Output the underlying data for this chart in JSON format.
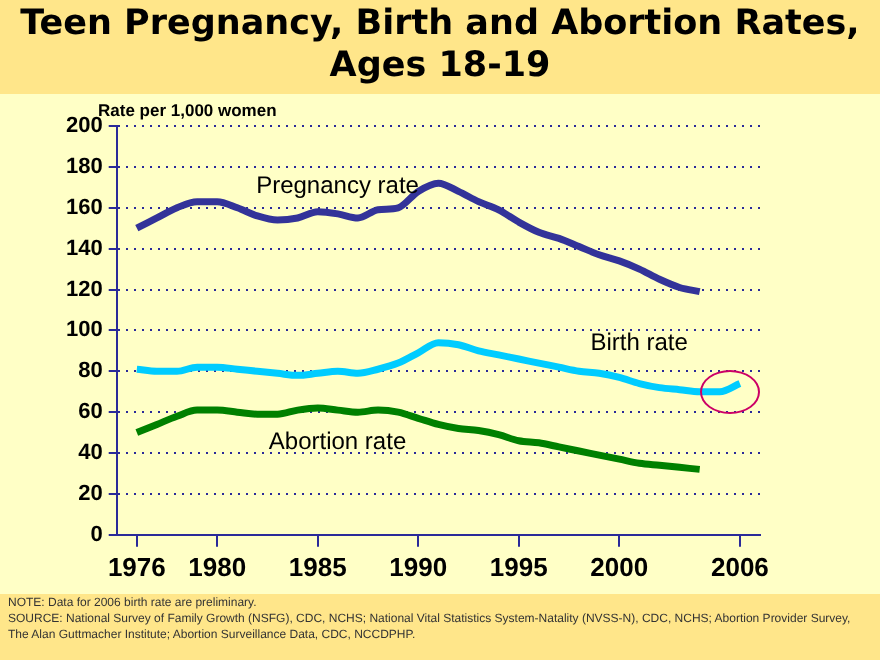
{
  "chart_data": {
    "type": "line",
    "title": "Teen Pregnancy, Birth and Abortion Rates, Ages 18-19",
    "ylabel": "Rate per 1,000 women",
    "x": [
      1976,
      1977,
      1978,
      1979,
      1980,
      1981,
      1982,
      1983,
      1984,
      1985,
      1986,
      1987,
      1988,
      1989,
      1990,
      1991,
      1992,
      1993,
      1994,
      1995,
      1996,
      1997,
      1998,
      1999,
      2000,
      2001,
      2002,
      2003,
      2004,
      2005,
      2006
    ],
    "series": [
      {
        "name": "Pregnancy rate",
        "color": "#333399",
        "values": [
          150,
          155,
          160,
          163,
          163,
          160,
          156,
          154,
          155,
          158,
          157,
          155,
          159,
          160,
          168,
          172,
          168,
          163,
          159,
          153,
          148,
          145,
          141,
          137,
          134,
          130,
          125,
          121,
          119,
          null,
          null
        ]
      },
      {
        "name": "Birth rate",
        "color": "#00ccff",
        "values": [
          81,
          80,
          80,
          82,
          82,
          81,
          80,
          79,
          78,
          79,
          80,
          79,
          81,
          84,
          89,
          94,
          93,
          90,
          88,
          86,
          84,
          82,
          80,
          79,
          77,
          74,
          72,
          71,
          70,
          70,
          74
        ]
      },
      {
        "name": "Abortion rate",
        "color": "#008000",
        "values": [
          50,
          54,
          58,
          61,
          61,
          60,
          59,
          59,
          61,
          62,
          61,
          60,
          61,
          60,
          57,
          54,
          52,
          51,
          49,
          46,
          45,
          43,
          41,
          39,
          37,
          35,
          34,
          33,
          32,
          null,
          null
        ]
      }
    ],
    "xlim": [
      1975,
      2007
    ],
    "xticks": [
      1976,
      1980,
      1985,
      1990,
      1995,
      2000,
      2006
    ],
    "ylim": [
      0,
      200
    ],
    "yticks": [
      0,
      20,
      40,
      60,
      80,
      100,
      120,
      140,
      160,
      180,
      200
    ],
    "grid": "y",
    "legend": false,
    "marker": "none",
    "line_style": "solid",
    "annotations": [
      "NOTE:  Data for 2006 birth rate are preliminary.",
      "SOURCE:  National Survey of Family Growth (NSFG), CDC, NCHS; National Vital Statistics System-Natality (NVSS-N), CDC, NCHS; Abortion Provider Survey, The Alan Guttmacher Institute; Abortion Surveillance Data, CDC, NCCDPHP."
    ]
  }
}
